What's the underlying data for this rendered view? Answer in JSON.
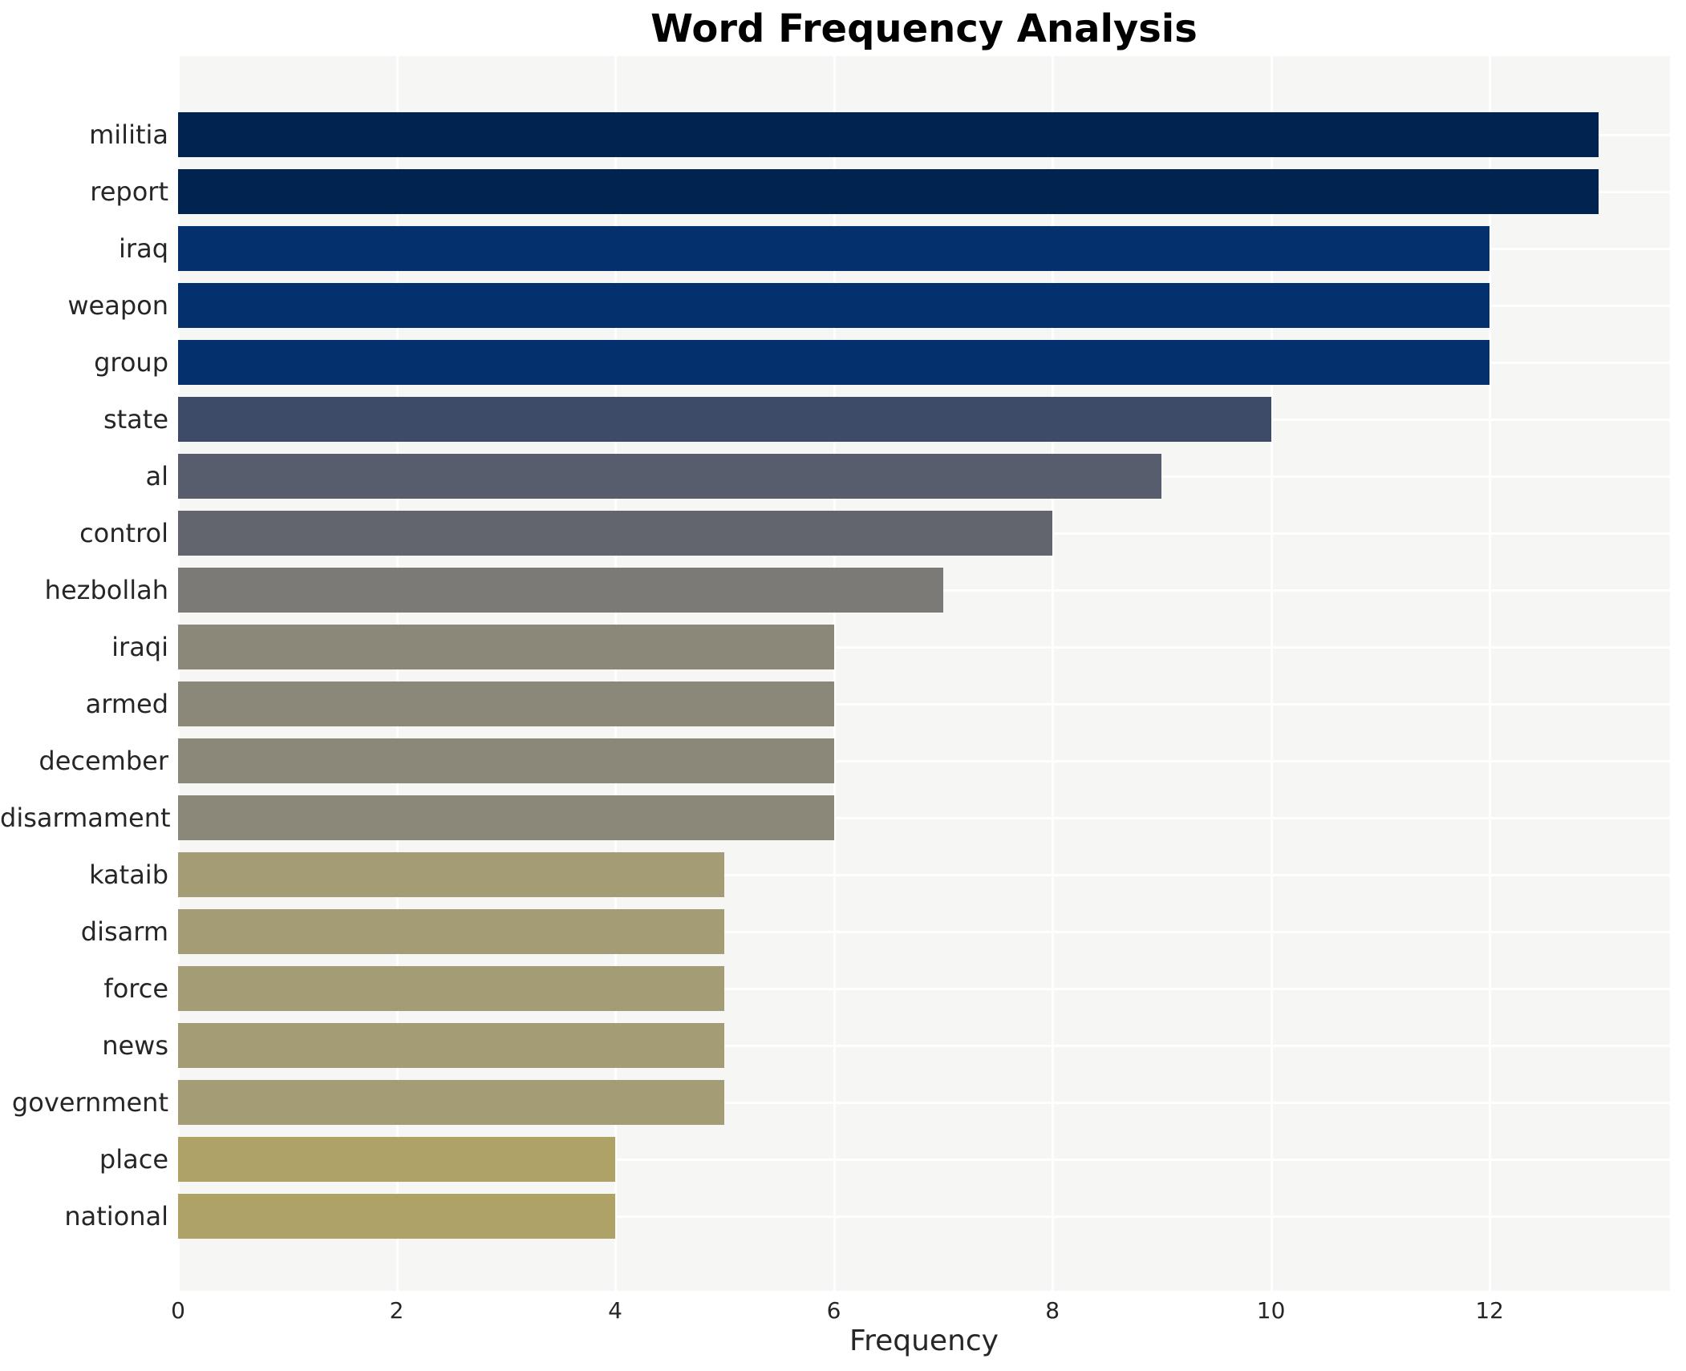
{
  "title": "Word Frequency Analysis",
  "xlabel": "Frequency",
  "colors": {
    "figure_background": "#ffffff",
    "plot_background": "#f6f6f4",
    "gridline": "#ffffff",
    "text": "#262626",
    "title_text": "#000000"
  },
  "chart_data": {
    "type": "bar",
    "orientation": "horizontal",
    "title": "Word Frequency Analysis",
    "xlabel": "Frequency",
    "ylabel": "",
    "categories": [
      "militia",
      "report",
      "iraq",
      "weapon",
      "group",
      "state",
      "al",
      "control",
      "hezbollah",
      "iraqi",
      "armed",
      "december",
      "disarmament",
      "kataib",
      "disarm",
      "force",
      "news",
      "government",
      "place",
      "national"
    ],
    "values": [
      13,
      13,
      12,
      12,
      12,
      10,
      9,
      8,
      7,
      6,
      6,
      6,
      6,
      5,
      5,
      5,
      5,
      5,
      4,
      4
    ],
    "bar_colors": [
      "#00234f",
      "#00234f",
      "#04316d",
      "#04316d",
      "#04316d",
      "#3d4a68",
      "#575d6d",
      "#63656e",
      "#7b7a77",
      "#8b8779",
      "#8b8779",
      "#8b8779",
      "#8b8779",
      "#a49c74",
      "#a49c74",
      "#a49c74",
      "#a49c74",
      "#a49c74",
      "#aea266",
      "#aea266"
    ],
    "x_ticks": [
      0,
      2,
      4,
      6,
      8,
      10,
      12
    ],
    "xlim": [
      0,
      13.65
    ],
    "grid": "major-only, white lines on light gray panel",
    "legend": "none",
    "colormap": "cividis (high value = dark navy, low value = khaki)"
  }
}
